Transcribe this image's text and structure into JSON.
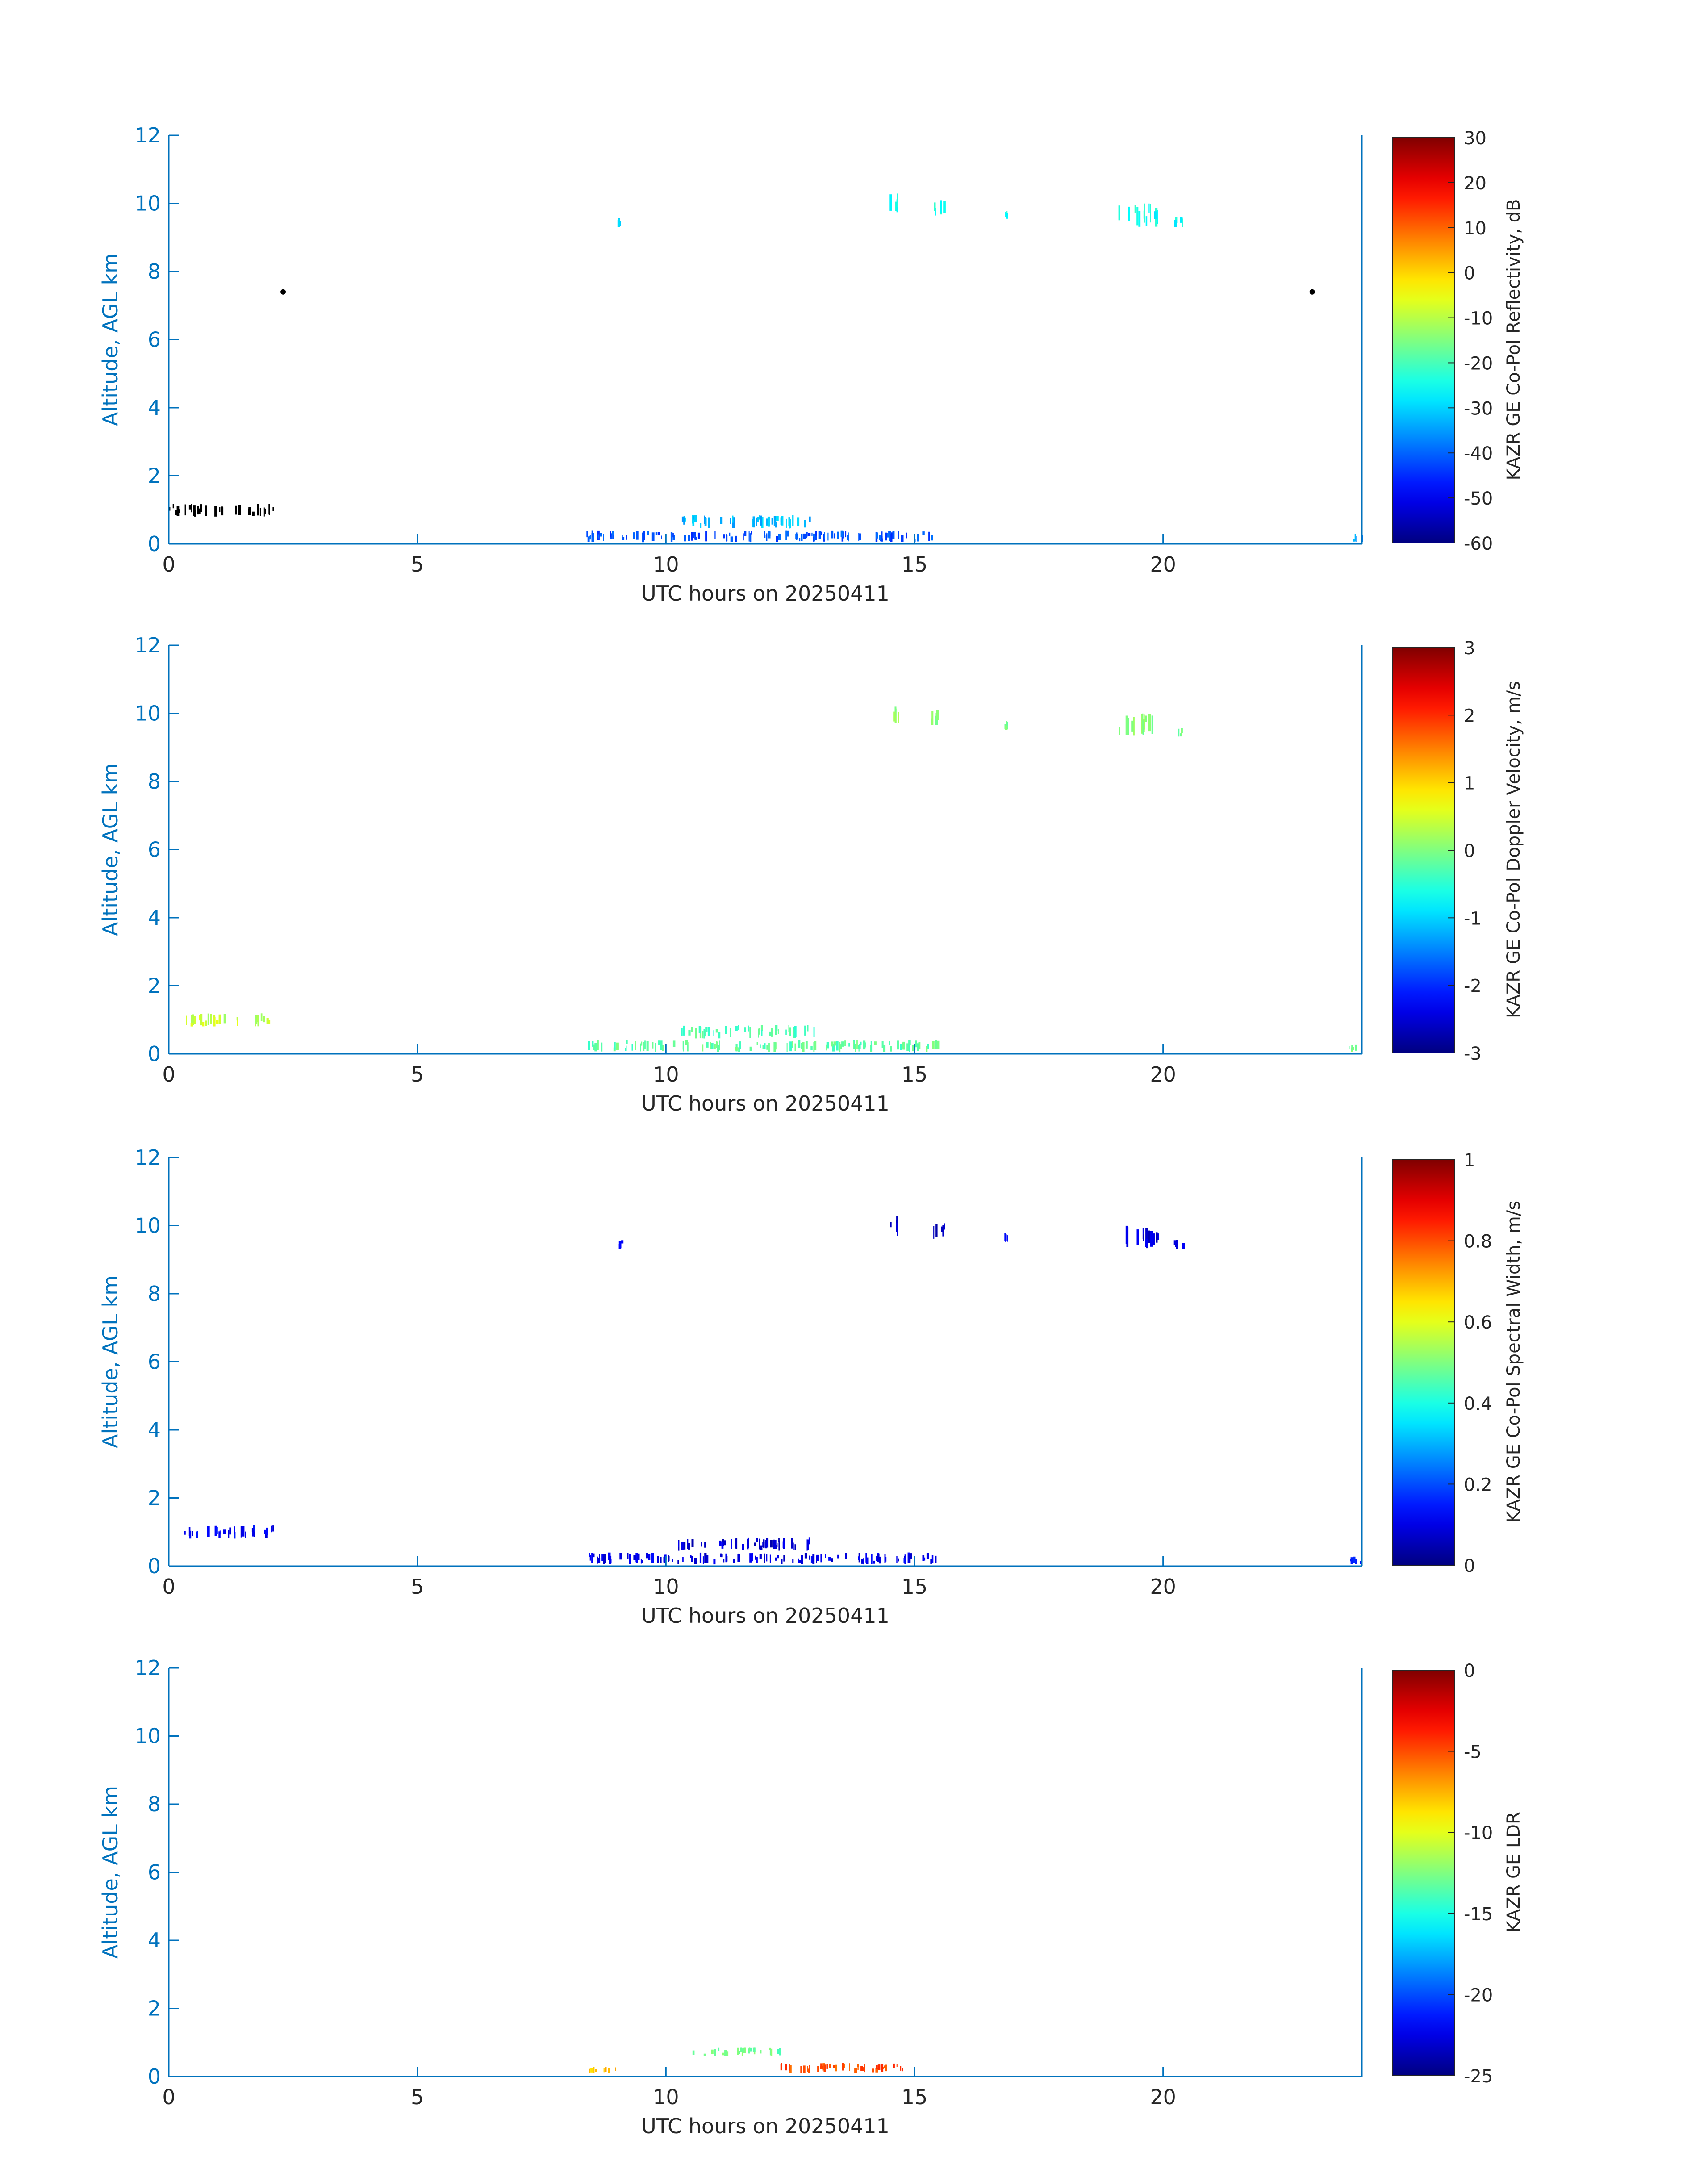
{
  "chart_data": [
    {
      "type": "heatmap",
      "xlabel": "UTC hours on 20250411",
      "ylabel": "Altitude, AGL km",
      "xlim": [
        0,
        24
      ],
      "ylim": [
        0,
        12
      ],
      "xticks": [
        "0",
        "5",
        "10",
        "15",
        "20"
      ],
      "yticks": [
        "0",
        "2",
        "4",
        "6",
        "8",
        "10",
        "12"
      ],
      "colorbar": {
        "label": "KAZR GE Co-Pol Reflectivity, dB",
        "min": -60,
        "max": 30,
        "colormap": "jet",
        "ticks": [
          "-60",
          "-50",
          "-40",
          "-30",
          "-20",
          "-10",
          "0",
          "10",
          "20",
          "30"
        ]
      },
      "features": [
        {
          "x": [
            14.5,
            14.7
          ],
          "y": [
            9.7,
            10.3
          ],
          "value": -25
        },
        {
          "x": [
            15.3,
            15.6
          ],
          "y": [
            9.6,
            10.1
          ],
          "value": -25
        },
        {
          "x": [
            16.8,
            16.9
          ],
          "y": [
            9.5,
            9.8
          ],
          "value": -25
        },
        {
          "x": [
            19.1,
            19.9
          ],
          "y": [
            9.3,
            10.0
          ],
          "value": -25
        },
        {
          "x": [
            20.2,
            20.4
          ],
          "y": [
            9.3,
            9.6
          ],
          "value": -25
        },
        {
          "x": [
            9.0,
            9.1
          ],
          "y": [
            9.3,
            9.6
          ],
          "value": -30
        },
        {
          "x": [
            0.0,
            2.1
          ],
          "y": [
            0.8,
            1.2
          ],
          "value": null
        },
        {
          "x": [
            10.2,
            13.0
          ],
          "y": [
            0.45,
            0.85
          ],
          "value": -32
        },
        {
          "x": [
            8.4,
            15.5
          ],
          "y": [
            0.05,
            0.4
          ],
          "value": -42
        },
        {
          "x": [
            23.7,
            24.0
          ],
          "y": [
            0.05,
            0.3
          ],
          "value": -35
        }
      ],
      "markers": [
        {
          "x": 2.3,
          "y": 7.4
        },
        {
          "x": 23.0,
          "y": 7.4
        }
      ]
    },
    {
      "type": "heatmap",
      "xlabel": "UTC hours on 20250411",
      "ylabel": "Altitude, AGL km",
      "xlim": [
        0,
        24
      ],
      "ylim": [
        0,
        12
      ],
      "xticks": [
        "0",
        "5",
        "10",
        "15",
        "20"
      ],
      "yticks": [
        "0",
        "2",
        "4",
        "6",
        "8",
        "10",
        "12"
      ],
      "colorbar": {
        "label": "KAZR GE Co-Pol Doppler Velocity, m/s",
        "min": -3,
        "max": 3,
        "colormap": "jet",
        "ticks": [
          "-3",
          "-2",
          "-1",
          "0",
          "1",
          "2",
          "3"
        ]
      },
      "features": [
        {
          "x": [
            14.5,
            14.7
          ],
          "y": [
            9.7,
            10.3
          ],
          "value": 0.2
        },
        {
          "x": [
            15.3,
            15.6
          ],
          "y": [
            9.6,
            10.1
          ],
          "value": 0.1
        },
        {
          "x": [
            16.8,
            16.9
          ],
          "y": [
            9.5,
            9.8
          ],
          "value": 0.0
        },
        {
          "x": [
            19.1,
            19.9
          ],
          "y": [
            9.3,
            10.0
          ],
          "value": 0.0
        },
        {
          "x": [
            20.2,
            20.4
          ],
          "y": [
            9.3,
            9.6
          ],
          "value": -0.1
        },
        {
          "x": [
            0.3,
            2.1
          ],
          "y": [
            0.8,
            1.2
          ],
          "value": 0.4
        },
        {
          "x": [
            10.2,
            13.0
          ],
          "y": [
            0.45,
            0.85
          ],
          "value": -0.3
        },
        {
          "x": [
            8.4,
            15.5
          ],
          "y": [
            0.05,
            0.4
          ],
          "value": -0.2
        },
        {
          "x": [
            23.7,
            24.0
          ],
          "y": [
            0.05,
            0.3
          ],
          "value": 0.0
        }
      ]
    },
    {
      "type": "heatmap",
      "xlabel": "UTC hours on 20250411",
      "ylabel": "Altitude, AGL km",
      "xlim": [
        0,
        24
      ],
      "ylim": [
        0,
        12
      ],
      "xticks": [
        "0",
        "5",
        "10",
        "15",
        "20"
      ],
      "yticks": [
        "0",
        "2",
        "4",
        "6",
        "8",
        "10",
        "12"
      ],
      "colorbar": {
        "label": "KAZR GE Co-Pol Spectral Width, m/s",
        "min": 0,
        "max": 1,
        "colormap": "jet",
        "ticks": [
          "0",
          "0.2",
          "0.4",
          "0.6",
          "0.8",
          "1"
        ]
      },
      "features": [
        {
          "x": [
            14.5,
            14.7
          ],
          "y": [
            9.7,
            10.3
          ],
          "value": 0.08
        },
        {
          "x": [
            15.3,
            15.6
          ],
          "y": [
            9.6,
            10.1
          ],
          "value": 0.08
        },
        {
          "x": [
            16.8,
            16.9
          ],
          "y": [
            9.5,
            9.8
          ],
          "value": 0.1
        },
        {
          "x": [
            19.1,
            19.9
          ],
          "y": [
            9.3,
            10.0
          ],
          "value": 0.08
        },
        {
          "x": [
            20.2,
            20.4
          ],
          "y": [
            9.3,
            9.6
          ],
          "value": 0.1
        },
        {
          "x": [
            9.0,
            9.1
          ],
          "y": [
            9.3,
            9.6
          ],
          "value": 0.1
        },
        {
          "x": [
            0.3,
            2.1
          ],
          "y": [
            0.8,
            1.2
          ],
          "value": 0.12
        },
        {
          "x": [
            10.2,
            13.0
          ],
          "y": [
            0.45,
            0.85
          ],
          "value": 0.08
        },
        {
          "x": [
            8.4,
            15.5
          ],
          "y": [
            0.05,
            0.4
          ],
          "value": 0.1
        },
        {
          "x": [
            23.7,
            24.0
          ],
          "y": [
            0.05,
            0.3
          ],
          "value": 0.15
        }
      ]
    },
    {
      "type": "heatmap",
      "xlabel": "UTC hours on 20250411",
      "ylabel": "Altitude, AGL km",
      "xlim": [
        0,
        24
      ],
      "ylim": [
        0,
        12
      ],
      "xticks": [
        "0",
        "5",
        "10",
        "15",
        "20"
      ],
      "yticks": [
        "0",
        "2",
        "4",
        "6",
        "8",
        "10",
        "12"
      ],
      "colorbar": {
        "label": "KAZR GE LDR",
        "min": -25,
        "max": 0,
        "colormap": "jet",
        "ticks": [
          "-25",
          "-20",
          "-15",
          "-10",
          "-5",
          "0"
        ]
      },
      "features": [
        {
          "x": [
            10.5,
            12.3
          ],
          "y": [
            0.6,
            0.85
          ],
          "value": -13
        },
        {
          "x": [
            12.2,
            14.8
          ],
          "y": [
            0.1,
            0.4
          ],
          "value": -5
        },
        {
          "x": [
            8.4,
            9.0
          ],
          "y": [
            0.1,
            0.3
          ],
          "value": -8
        }
      ]
    }
  ]
}
